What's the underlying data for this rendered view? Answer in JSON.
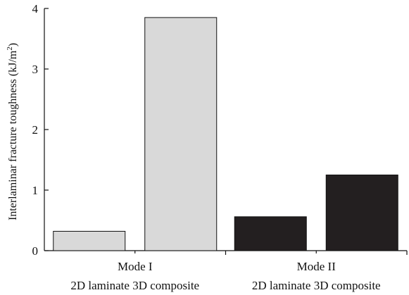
{
  "chart_data": {
    "type": "bar",
    "title": "",
    "xlabel": "",
    "ylabel": "Interlaminar fracture toughness (kJ/m",
    "ylabel_superscript": "2",
    "ylabel_suffix": ")",
    "ylim": [
      0,
      4
    ],
    "yticks": [
      "0",
      "1",
      "2",
      "3",
      "4"
    ],
    "grid": false,
    "groups": [
      {
        "label": "Mode I",
        "sublabel": "2D laminate 3D composite",
        "color": "#d9d9d9",
        "bars": [
          {
            "category": "2D laminate",
            "value": 0.32
          },
          {
            "category": "3D composite",
            "value": 3.85
          }
        ]
      },
      {
        "label": "Mode II",
        "sublabel": "2D laminate 3D composite",
        "color": "#231f20",
        "bars": [
          {
            "category": "2D laminate",
            "value": 0.56
          },
          {
            "category": "3D composite",
            "value": 1.25
          }
        ]
      }
    ]
  }
}
